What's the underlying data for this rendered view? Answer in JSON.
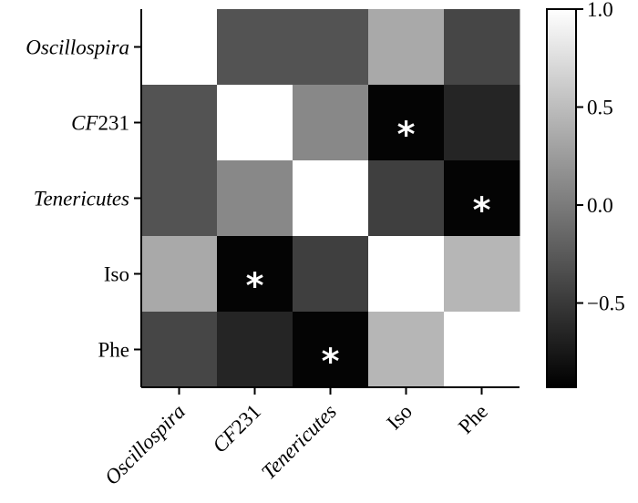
{
  "chart_data": {
    "type": "heatmap",
    "title": "",
    "xlabel": "",
    "ylabel": "",
    "rows": [
      "Oscillospira",
      "CF231",
      "Tenericutes",
      "Iso",
      "Phe"
    ],
    "columns": [
      "Oscillospira",
      "CF231",
      "Tenericutes",
      "Iso",
      "Phe"
    ],
    "italic_labels": [
      "Oscillospira",
      "CF231",
      "Tenericutes"
    ],
    "partial_italic": {
      "CF231": {
        "italic": "CF",
        "roman": "231"
      }
    },
    "values": [
      [
        1.0,
        -0.3,
        -0.3,
        0.35,
        -0.4
      ],
      [
        -0.3,
        1.0,
        0.1,
        -0.9,
        -0.65
      ],
      [
        -0.3,
        0.1,
        1.0,
        -0.45,
        -0.9
      ],
      [
        0.35,
        -0.9,
        -0.45,
        1.0,
        0.45
      ],
      [
        -0.4,
        -0.65,
        -0.9,
        0.45,
        1.0
      ]
    ],
    "significant": [
      [
        1,
        3
      ],
      [
        2,
        4
      ],
      [
        3,
        1
      ],
      [
        4,
        2
      ]
    ],
    "significance_marker": "*",
    "colorbar": {
      "min": -0.93,
      "max": 1.0,
      "ticks": [
        "1.0",
        "0.5",
        "0.0",
        "−0.5"
      ],
      "tick_values": [
        1.0,
        0.5,
        0.0,
        -0.5
      ],
      "colormap": "grayscale (black = low, white = high)"
    }
  }
}
